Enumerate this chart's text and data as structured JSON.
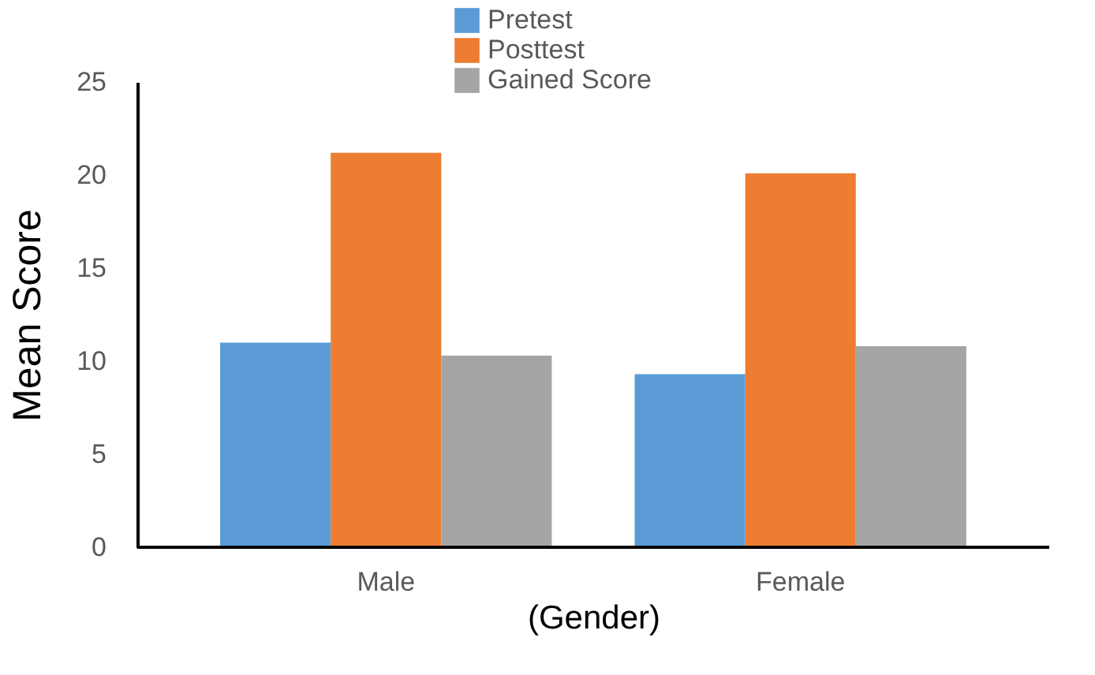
{
  "chart_data": {
    "type": "bar",
    "xlabel": "(Gender)",
    "ylabel": "Mean Score",
    "categories": [
      "Male",
      "Female"
    ],
    "series": [
      {
        "name": "Pretest",
        "color": "#5b9bd5",
        "values": [
          11.0,
          9.3
        ]
      },
      {
        "name": "Posttest",
        "color": "#ed7d31",
        "values": [
          21.2,
          20.1
        ]
      },
      {
        "name": "Gained Score",
        "color": "#a5a5a5",
        "values": [
          10.3,
          10.8
        ]
      }
    ],
    "ylim": [
      0,
      25
    ],
    "yticks": [
      0,
      5,
      10,
      15,
      20,
      25
    ],
    "grid": false,
    "legend": "top"
  }
}
